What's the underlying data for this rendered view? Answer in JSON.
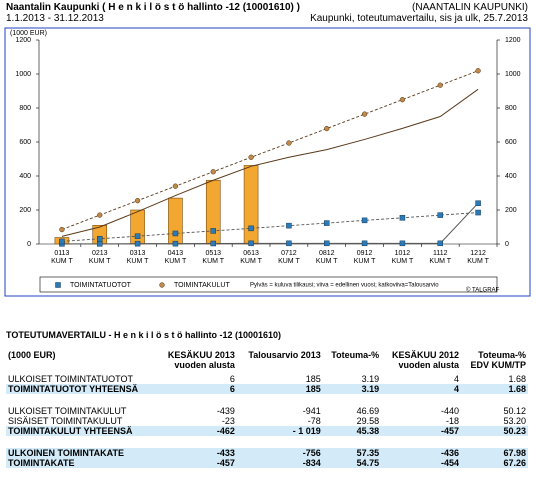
{
  "header": {
    "title": "Naantalin Kaupunki ( H e n k i l ö s t ö hallinto -12 (10001610) )",
    "org": "(NAANTALIN KAUPUNKI)",
    "period": "1.1.2013 - 31.12.2013",
    "subtitle": "Kaupunki, toteutumavertailu, sis ja ulk, 25.7.2013"
  },
  "chart_data": {
    "type": "combo",
    "y_label": "(1000 EUR)",
    "categories": [
      [
        "0113",
        "KUM T"
      ],
      [
        "0213",
        "KUM T"
      ],
      [
        "0313",
        "KUM T"
      ],
      [
        "0413",
        "KUM T"
      ],
      [
        "0513",
        "KUM T"
      ],
      [
        "0613",
        "KUM T"
      ],
      [
        "0712",
        "KUM T"
      ],
      [
        "0812",
        "KUM T"
      ],
      [
        "0912",
        "KUM T"
      ],
      [
        "1012",
        "KUM T"
      ],
      [
        "1112",
        "KUM T"
      ],
      [
        "1212",
        "KUM T"
      ]
    ],
    "ylim": [
      0,
      1200
    ],
    "yticks": [
      0,
      200,
      400,
      600,
      800,
      1000,
      1200
    ],
    "groups": [
      {
        "name": "TOIMINTATUOTOT",
        "color": "#2b7bb9",
        "line_color": "#555555",
        "marker": "square",
        "marker_on": [
          "previous",
          "budget"
        ],
        "previous": [
          1,
          1,
          2,
          2,
          3,
          4,
          4,
          4,
          4,
          4,
          4,
          240
        ],
        "budget": [
          15,
          31,
          46,
          62,
          77,
          92,
          108,
          123,
          139,
          154,
          170,
          185
        ]
      },
      {
        "name": "TOIMINTAKULUT",
        "color": "#c08a4a",
        "line_color": "#5a3a1a",
        "bar_color": "#f2a830",
        "marker": "circle",
        "marker_on": [
          "budget"
        ],
        "current": [
          38,
          110,
          200,
          270,
          375,
          462,
          null,
          null,
          null,
          null,
          null,
          null
        ],
        "previous": [
          45,
          100,
          190,
          285,
          375,
          457,
          510,
          555,
          615,
          680,
          750,
          910
        ],
        "budget": [
          85,
          170,
          255,
          340,
          425,
          510,
          594,
          679,
          764,
          849,
          934,
          1019
        ]
      }
    ],
    "note": "Pylväs = kuluva tilikausi; viiva = edellinen vuosi; katkoviiva=Talousarvio",
    "credit": "© TALGRAF"
  },
  "table": {
    "title": "TOTEUTUMAVERTAILU - H e n k i l ö s t ö hallinto -12 (10001610)",
    "columns": [
      [
        "(1000 EUR)"
      ],
      [
        "KESÄKUU 2013",
        "vuoden alusta"
      ],
      [
        "Talousarvio 2013"
      ],
      [
        "Toteuma-%"
      ],
      [
        "KESÄKUU 2012",
        "vuoden alusta"
      ],
      [
        "Toteuma-%",
        "EDV KUM/TP"
      ]
    ],
    "sections": [
      [
        {
          "cells": [
            "ULKOISET TOIMINTATUOTOT",
            "6",
            "185",
            "3.19",
            "4",
            "1.68"
          ],
          "total": false
        },
        {
          "cells": [
            "TOIMINTATUOTOT YHTEENSÄ",
            "6",
            "185",
            "3.19",
            "4",
            "1.68"
          ],
          "total": true
        }
      ],
      [
        {
          "cells": [
            "ULKOISET TOIMINTAKULUT",
            "-439",
            "-941",
            "46.69",
            "-440",
            "50.12"
          ],
          "total": false
        },
        {
          "cells": [
            "SISÄISET TOIMINTAKULUT",
            "-23",
            "-78",
            "29.58",
            "-18",
            "53.20"
          ],
          "total": false
        },
        {
          "cells": [
            "TOIMINTAKULUT YHTEENSÄ",
            "-462",
            "- 1 019",
            "45.38",
            "-457",
            "50.23"
          ],
          "total": true
        }
      ],
      [
        {
          "cells": [
            "ULKOINEN TOIMINTAKATE",
            "-433",
            "-756",
            "57.35",
            "-436",
            "67.98"
          ],
          "total": true
        },
        {
          "cells": [
            "TOIMINTAKATE",
            "-457",
            "-834",
            "54.75",
            "-454",
            "67.26"
          ],
          "total": true
        }
      ]
    ]
  }
}
